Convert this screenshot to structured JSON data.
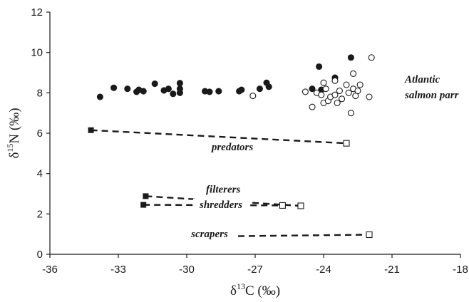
{
  "chart_data": {
    "type": "scatter",
    "title": "",
    "xlabel": {
      "main": "δ",
      "sup": "13",
      "tail": "C (‰)"
    },
    "ylabel": {
      "main": "δ",
      "sup": "15",
      "tail": "N (‰)"
    },
    "xlim": [
      -36,
      -18
    ],
    "ylim": [
      0,
      12
    ],
    "xticks": [
      -36,
      -33,
      -30,
      -27,
      -24,
      -21,
      -18
    ],
    "yticks": [
      0,
      2,
      4,
      6,
      8,
      10,
      12
    ],
    "grid": false,
    "legend": "none",
    "colors": {
      "ink": "#1a1a1a",
      "open_fill": "#ffffff"
    },
    "series": [
      {
        "marker": "filled-circle",
        "points": [
          [
            -33.8,
            7.8
          ],
          [
            -33.2,
            8.25
          ],
          [
            -32.6,
            8.2
          ],
          [
            -32.2,
            8.05
          ],
          [
            -32.1,
            8.15
          ],
          [
            -31.9,
            8.08
          ],
          [
            -31.4,
            8.45
          ],
          [
            -31.0,
            8.12
          ],
          [
            -30.8,
            8.2
          ],
          [
            -30.6,
            7.95
          ],
          [
            -30.3,
            8.0
          ],
          [
            -30.3,
            8.2
          ],
          [
            -30.3,
            8.48
          ],
          [
            -29.2,
            8.08
          ],
          [
            -29.0,
            8.05
          ],
          [
            -28.6,
            8.08
          ],
          [
            -27.7,
            8.08
          ],
          [
            -27.6,
            8.15
          ],
          [
            -26.8,
            8.2
          ],
          [
            -26.5,
            8.5
          ],
          [
            -26.4,
            8.3
          ],
          [
            -24.5,
            8.2
          ],
          [
            -24.2,
            9.3
          ],
          [
            -24.1,
            8.15
          ],
          [
            -23.5,
            8.75
          ],
          [
            -22.8,
            9.75
          ]
        ]
      },
      {
        "marker": "open-circle",
        "points": [
          [
            -27.1,
            7.85
          ],
          [
            -24.8,
            8.05
          ],
          [
            -24.5,
            7.3
          ],
          [
            -24.3,
            8.0
          ],
          [
            -24.1,
            7.9
          ],
          [
            -24.0,
            8.5
          ],
          [
            -24.0,
            7.5
          ],
          [
            -23.9,
            8.2
          ],
          [
            -23.8,
            7.6
          ],
          [
            -23.7,
            7.8
          ],
          [
            -23.5,
            8.6
          ],
          [
            -23.5,
            7.9
          ],
          [
            -23.4,
            7.5
          ],
          [
            -23.3,
            8.1
          ],
          [
            -23.2,
            7.7
          ],
          [
            -23.0,
            8.4
          ],
          [
            -22.9,
            8.0
          ],
          [
            -22.8,
            7.0
          ],
          [
            -22.7,
            8.95
          ],
          [
            -22.7,
            8.2
          ],
          [
            -22.6,
            7.85
          ],
          [
            -22.5,
            8.1
          ],
          [
            -22.4,
            8.4
          ],
          [
            -22.0,
            7.8
          ],
          [
            -21.9,
            9.75
          ]
        ]
      }
    ],
    "groups": [
      {
        "label": "predators",
        "from": [
          -34.2,
          6.15
        ],
        "to": [
          -23.0,
          5.5
        ],
        "label_at": [
          -28.0,
          5.15
        ]
      },
      {
        "label": "filterers",
        "from": [
          -31.8,
          2.88
        ],
        "to": [
          -25.0,
          2.4
        ],
        "label_at": [
          -28.4,
          3.05
        ]
      },
      {
        "label": "shredders",
        "from": [
          -31.9,
          2.45
        ],
        "to": [
          -25.8,
          2.42
        ],
        "label_at": [
          -28.5,
          2.3
        ]
      },
      {
        "label": "scrapers",
        "from": null,
        "to": [
          -22.0,
          0.97
        ],
        "label_at": [
          -29.0,
          0.85
        ]
      }
    ],
    "annotations": [
      {
        "lines": [
          "Atlantic",
          "salmon parr"
        ],
        "at": [
          -19.5,
          8.5
        ]
      }
    ]
  }
}
